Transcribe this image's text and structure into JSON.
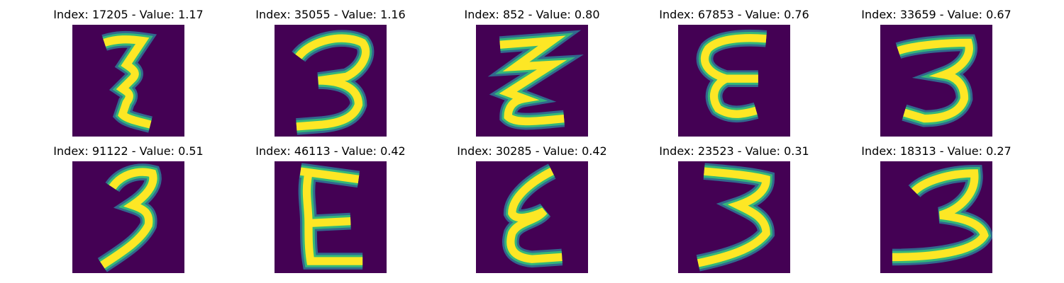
{
  "colors": {
    "background": "#440154",
    "stroke_inner": "#fde725",
    "stroke_mid": "#35b779",
    "stroke_outer": "#31688e"
  },
  "panels": [
    {
      "title": "Index: 17205 - Value: 1.17",
      "glyph": "3"
    },
    {
      "title": "Index: 35055 - Value: 1.16",
      "glyph": "3"
    },
    {
      "title": "Index: 852 - Value: 0.80",
      "glyph": "3"
    },
    {
      "title": "Index: 67853 - Value: 0.76",
      "glyph": "3"
    },
    {
      "title": "Index: 33659 - Value: 0.67",
      "glyph": "3"
    },
    {
      "title": "Index: 91122 - Value: 0.51",
      "glyph": "3"
    },
    {
      "title": "Index: 46113 - Value: 0.42",
      "glyph": "3"
    },
    {
      "title": "Index: 30285 - Value: 0.42",
      "glyph": "3"
    },
    {
      "title": "Index: 23523 - Value: 0.31",
      "glyph": "3"
    },
    {
      "title": "Index: 18313 - Value: 0.27",
      "glyph": "3"
    }
  ]
}
